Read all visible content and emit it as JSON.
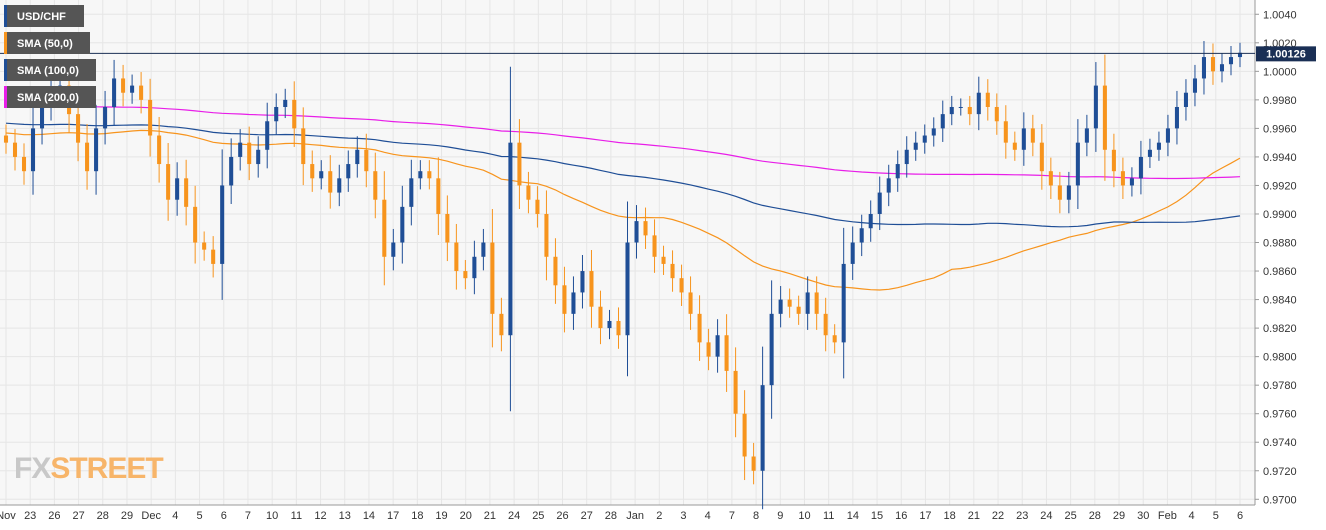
{
  "chart_data": {
    "type": "candlestick",
    "title": "USD/CHF",
    "indicators": [
      {
        "name": "SMA (50,0)",
        "color": "#f7941d"
      },
      {
        "name": "SMA (100,0)",
        "color": "#1f4e96"
      },
      {
        "name": "SMA (200,0)",
        "color": "#e81ee8"
      }
    ],
    "colors": {
      "bull": "#1f4e96",
      "bear": "#f7941d",
      "grid": "#e6e6e6",
      "price_line": "#1a2f55",
      "plot_bg": "#f7f7f7"
    },
    "current_price": 1.00126,
    "current_price_label": "1.00126",
    "ylim": [
      0.9696,
      1.005
    ],
    "y_ticks": [
      1.004,
      1.002,
      1.0,
      0.998,
      0.996,
      0.994,
      0.992,
      0.99,
      0.988,
      0.986,
      0.984,
      0.982,
      0.98,
      0.978,
      0.976,
      0.974,
      0.972,
      0.97
    ],
    "y_tick_labels": [
      "1.0040",
      "1.0020",
      "1.0000",
      "0.9980",
      "0.9960",
      "0.9940",
      "0.9920",
      "0.9900",
      "0.9880",
      "0.9860",
      "0.9840",
      "0.9820",
      "0.9800",
      "0.9780",
      "0.9760",
      "0.9740",
      "0.9720",
      "0.9700"
    ],
    "x_ticks": [
      "Nov",
      "23",
      "26",
      "27",
      "28",
      "29",
      "Dec",
      "4",
      "5",
      "6",
      "7",
      "10",
      "11",
      "12",
      "13",
      "14",
      "17",
      "18",
      "19",
      "20",
      "21",
      "24",
      "25",
      "26",
      "27",
      "28",
      "Jan",
      "2",
      "3",
      "4",
      "7",
      "8",
      "9",
      "10",
      "11",
      "14",
      "15",
      "16",
      "17",
      "18",
      "21",
      "22",
      "23",
      "24",
      "25",
      "28",
      "29",
      "30",
      "Feb",
      "4",
      "5",
      "6"
    ],
    "closes": [
      0.995,
      0.994,
      0.993,
      0.996,
      0.9975,
      0.9985,
      0.999,
      0.997,
      0.995,
      0.993,
      0.996,
      0.9975,
      0.9995,
      0.9985,
      0.999,
      0.998,
      0.9955,
      0.9935,
      0.991,
      0.9925,
      0.9905,
      0.988,
      0.9875,
      0.9865,
      0.992,
      0.994,
      0.995,
      0.9935,
      0.9945,
      0.9965,
      0.9975,
      0.998,
      0.996,
      0.9935,
      0.9925,
      0.993,
      0.9915,
      0.9925,
      0.9935,
      0.9945,
      0.993,
      0.991,
      0.987,
      0.988,
      0.9905,
      0.9925,
      0.993,
      0.9925,
      0.99,
      0.988,
      0.986,
      0.9855,
      0.987,
      0.988,
      0.983,
      0.9815,
      0.995,
      0.992,
      0.991,
      0.99,
      0.987,
      0.985,
      0.983,
      0.9845,
      0.986,
      0.9835,
      0.982,
      0.9825,
      0.9815,
      0.988,
      0.9895,
      0.9885,
      0.987,
      0.9865,
      0.9855,
      0.9845,
      0.983,
      0.981,
      0.98,
      0.9815,
      0.979,
      0.976,
      0.973,
      0.972,
      0.978,
      0.983,
      0.984,
      0.9835,
      0.983,
      0.9845,
      0.983,
      0.9815,
      0.981,
      0.9865,
      0.988,
      0.989,
      0.99,
      0.9915,
      0.9925,
      0.9935,
      0.9945,
      0.995,
      0.9955,
      0.996,
      0.997,
      0.9975,
      0.9975,
      0.997,
      0.9985,
      0.9975,
      0.9965,
      0.995,
      0.9945,
      0.996,
      0.995,
      0.993,
      0.992,
      0.991,
      0.992,
      0.995,
      0.996,
      0.999,
      0.9945,
      0.993,
      0.992,
      0.9925,
      0.994,
      0.9945,
      0.995,
      0.996,
      0.9975,
      0.9985,
      0.9995,
      1.001,
      1.0,
      1.0005,
      1.001,
      1.0013
    ]
  }
}
